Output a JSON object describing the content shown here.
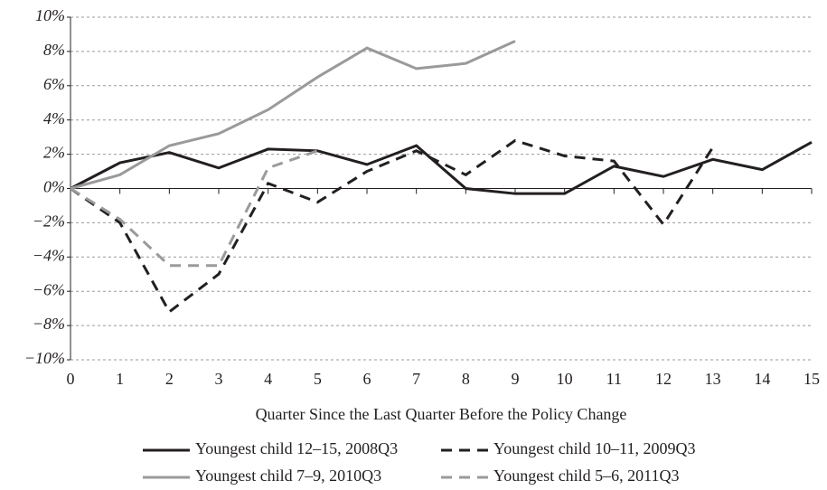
{
  "chart_data": {
    "type": "line",
    "x_label": "Quarter Since the Last Quarter Before the Policy Change",
    "x": [
      0,
      1,
      2,
      3,
      4,
      5,
      6,
      7,
      8,
      9,
      10,
      11,
      12,
      13,
      14,
      15
    ],
    "xlim": [
      0,
      15
    ],
    "xticks": [
      0,
      1,
      2,
      3,
      4,
      5,
      6,
      7,
      8,
      9,
      10,
      11,
      12,
      13,
      14,
      15
    ],
    "ylim": [
      -10,
      10
    ],
    "yticks": [
      {
        "value": -10,
        "label": "−10%"
      },
      {
        "value": -8,
        "label": "−8%"
      },
      {
        "value": -6,
        "label": "−6%"
      },
      {
        "value": -4,
        "label": "−4%"
      },
      {
        "value": -2,
        "label": "−2%"
      },
      {
        "value": 0,
        "label": "0%"
      },
      {
        "value": 2,
        "label": "2%"
      },
      {
        "value": 4,
        "label": "4%"
      },
      {
        "value": 6,
        "label": "6%"
      },
      {
        "value": 8,
        "label": "8%"
      },
      {
        "value": 10,
        "label": "10%"
      }
    ],
    "grid": true,
    "legend": "bottom",
    "series": [
      {
        "name": "Youngest child 12–15, 2008Q3",
        "color": "#231f20",
        "style": "solid",
        "values": [
          0,
          1.5,
          2.1,
          1.2,
          2.3,
          2.2,
          1.4,
          2.5,
          0.0,
          -0.3,
          -0.3,
          1.3,
          0.7,
          1.7,
          1.1,
          2.7
        ]
      },
      {
        "name": "Youngest child 10–11, 2009Q3",
        "color": "#231f20",
        "style": "dashed",
        "values": [
          0,
          -2.0,
          -7.2,
          -5.0,
          0.3,
          -0.8,
          1.0,
          2.2,
          0.8,
          2.8,
          1.9,
          1.6,
          -2.1,
          2.4,
          null,
          null
        ]
      },
      {
        "name": "Youngest child 7–9, 2010Q3",
        "color": "#9a9a9a",
        "style": "solid",
        "values": [
          0,
          0.8,
          2.5,
          3.2,
          4.6,
          6.5,
          8.2,
          7.0,
          7.3,
          8.6,
          null,
          null,
          null,
          null,
          null,
          null
        ]
      },
      {
        "name": "Youngest child 5–6, 2011Q3",
        "color": "#9a9a9a",
        "style": "dashed",
        "values": [
          0,
          -1.8,
          -4.5,
          -4.5,
          1.2,
          2.2,
          null,
          null,
          null,
          null,
          null,
          null,
          null,
          null,
          null,
          null
        ]
      }
    ]
  }
}
